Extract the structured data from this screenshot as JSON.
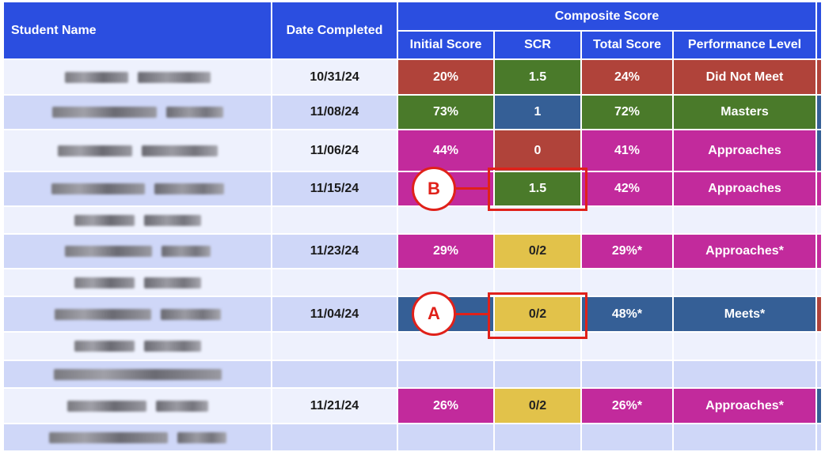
{
  "headers": {
    "student_name": "Student Name",
    "date_completed": "Date Completed",
    "composite_score": "Composite Score",
    "initial_score": "Initial Score",
    "scr": "SCR",
    "total_score": "Total Score",
    "performance_level": "Performance Level"
  },
  "colors": {
    "header": "#2b4ee0",
    "row_light": "#eef1fd",
    "row_dark": "#cfd7f8",
    "did_not_meet": "#b0433a",
    "masters": "#4a7a2a",
    "approaches": "#c22a9c",
    "meets": "#355f96",
    "scr_zero": "#e2c24a",
    "callout": "#e0211a"
  },
  "rows": [
    {
      "date": "10/31/24",
      "initial": "20%",
      "scr": "1.5",
      "total": "24%",
      "level": "Did Not Meet"
    },
    {
      "date": "11/08/24",
      "initial": "73%",
      "scr": "1",
      "total": "72%",
      "level": "Masters"
    },
    {
      "date": "11/06/24",
      "initial": "44%",
      "scr": "0",
      "total": "41%",
      "level": "Approaches"
    },
    {
      "date": "11/15/24",
      "initial": "",
      "scr": "1.5",
      "total": "42%",
      "level": "Approaches"
    },
    {
      "date": "",
      "initial": "",
      "scr": "",
      "total": "",
      "level": ""
    },
    {
      "date": "11/23/24",
      "initial": "29%",
      "scr": "0/2",
      "total": "29%*",
      "level": "Approaches*"
    },
    {
      "date": "",
      "initial": "",
      "scr": "",
      "total": "",
      "level": ""
    },
    {
      "date": "11/04/24",
      "initial": "",
      "scr": "0/2",
      "total": "48%*",
      "level": "Meets*"
    },
    {
      "date": "",
      "initial": "",
      "scr": "",
      "total": "",
      "level": ""
    },
    {
      "date": "",
      "initial": "",
      "scr": "",
      "total": "",
      "level": ""
    },
    {
      "date": "11/21/24",
      "initial": "26%",
      "scr": "0/2",
      "total": "26%*",
      "level": "Approaches*"
    },
    {
      "date": "",
      "initial": "",
      "scr": "",
      "total": "",
      "level": ""
    }
  ],
  "callouts": {
    "a": "A",
    "b": "B"
  }
}
